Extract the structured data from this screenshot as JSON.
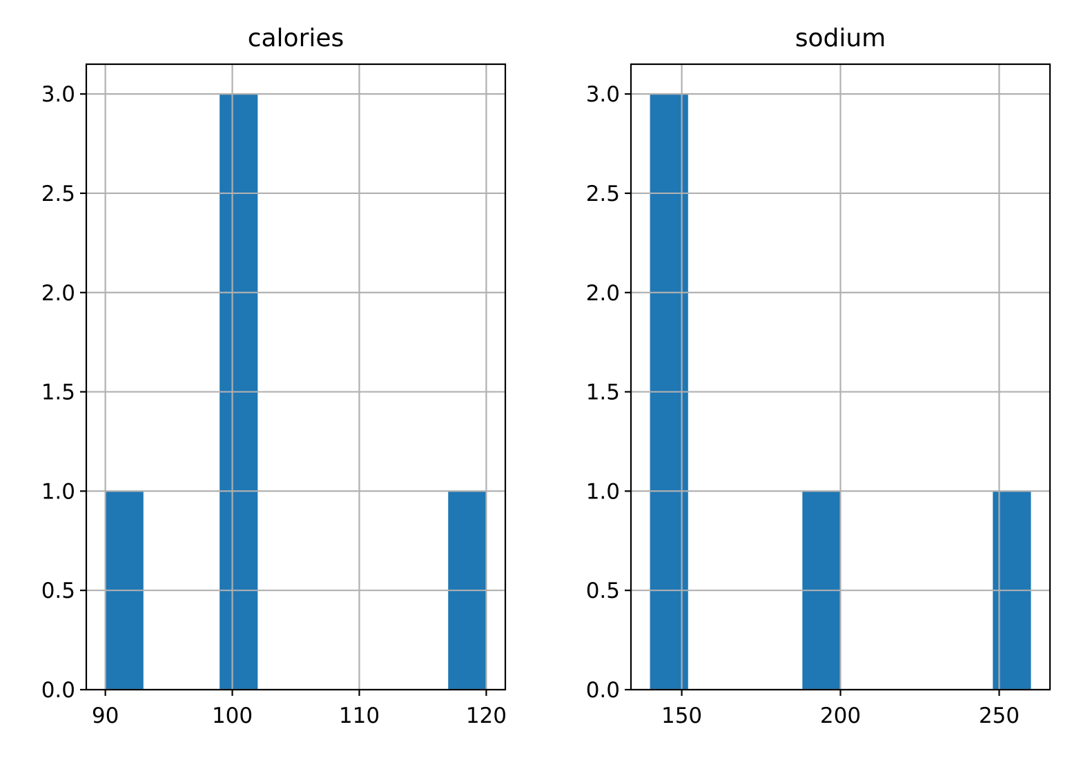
{
  "chart_data": [
    {
      "type": "bar",
      "title": "calories",
      "xlabel": "",
      "ylabel": "",
      "xlim": [
        88.5,
        121.5
      ],
      "ylim": [
        0,
        3.15
      ],
      "xticks": [
        90,
        100,
        110,
        120
      ],
      "yticks": [
        0.0,
        0.5,
        1.0,
        1.5,
        2.0,
        2.5,
        3.0
      ],
      "grid": true,
      "bins": [
        {
          "start": 90,
          "end": 93,
          "count": 1
        },
        {
          "start": 99,
          "end": 102,
          "count": 3
        },
        {
          "start": 117,
          "end": 120,
          "count": 1
        }
      ],
      "color": "#1f77b4"
    },
    {
      "type": "bar",
      "title": "sodium",
      "xlabel": "",
      "ylabel": "",
      "xlim": [
        134,
        266
      ],
      "ylim": [
        0,
        3.15
      ],
      "xticks": [
        150,
        200,
        250
      ],
      "yticks": [
        0.0,
        0.5,
        1.0,
        1.5,
        2.0,
        2.5,
        3.0
      ],
      "grid": true,
      "bins": [
        {
          "start": 140,
          "end": 152,
          "count": 3
        },
        {
          "start": 188,
          "end": 200,
          "count": 1
        },
        {
          "start": 248,
          "end": 260,
          "count": 1
        }
      ],
      "color": "#1f77b4"
    }
  ],
  "colors": {
    "bar": "#1f77b4",
    "grid": "#b0b0b0",
    "axis": "#000000"
  }
}
